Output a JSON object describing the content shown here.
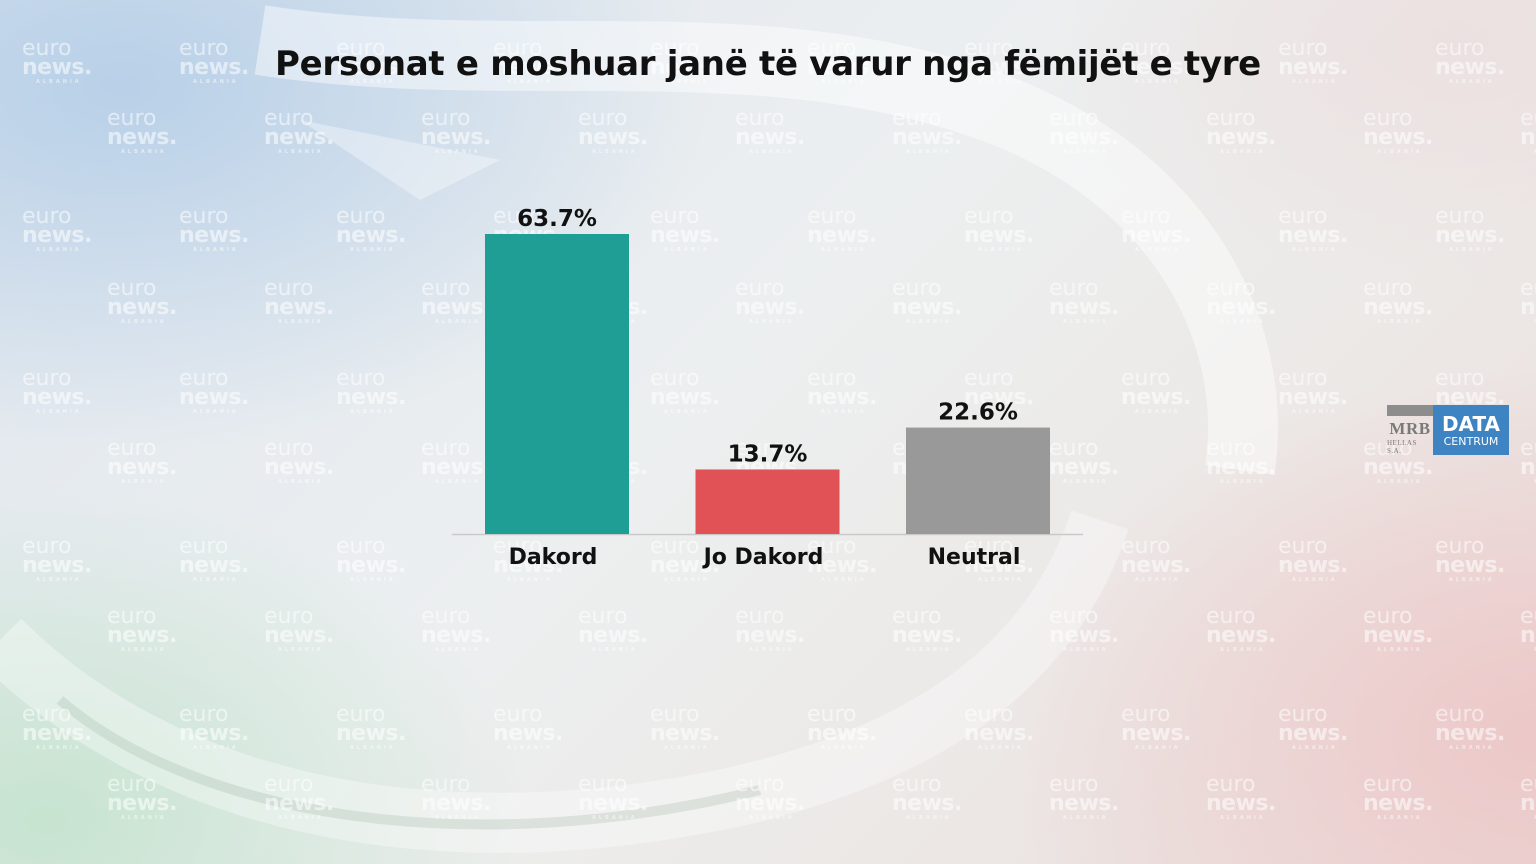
{
  "chart_data": {
    "type": "bar",
    "title": "Personat e moshuar janë të varur nga fëmijët e tyre",
    "categories": [
      "Dakord",
      "Jo Dakord",
      "Neutral"
    ],
    "values": [
      63.7,
      13.7,
      22.6
    ],
    "value_labels": [
      "63.7%",
      "13.7%",
      "22.6%"
    ],
    "colors": [
      "#1f9e96",
      "#e05255",
      "#999999"
    ],
    "ylim": [
      0,
      63.7
    ],
    "grid": false,
    "legend": "none"
  },
  "watermark": {
    "line1": "euro",
    "line2": "news.",
    "line3": "ALBANIA"
  },
  "logo": {
    "left_text": "MRB",
    "left_sub": "HELLAS S.A.",
    "right_text": "DATA",
    "right_sub": "CENTRUM"
  }
}
